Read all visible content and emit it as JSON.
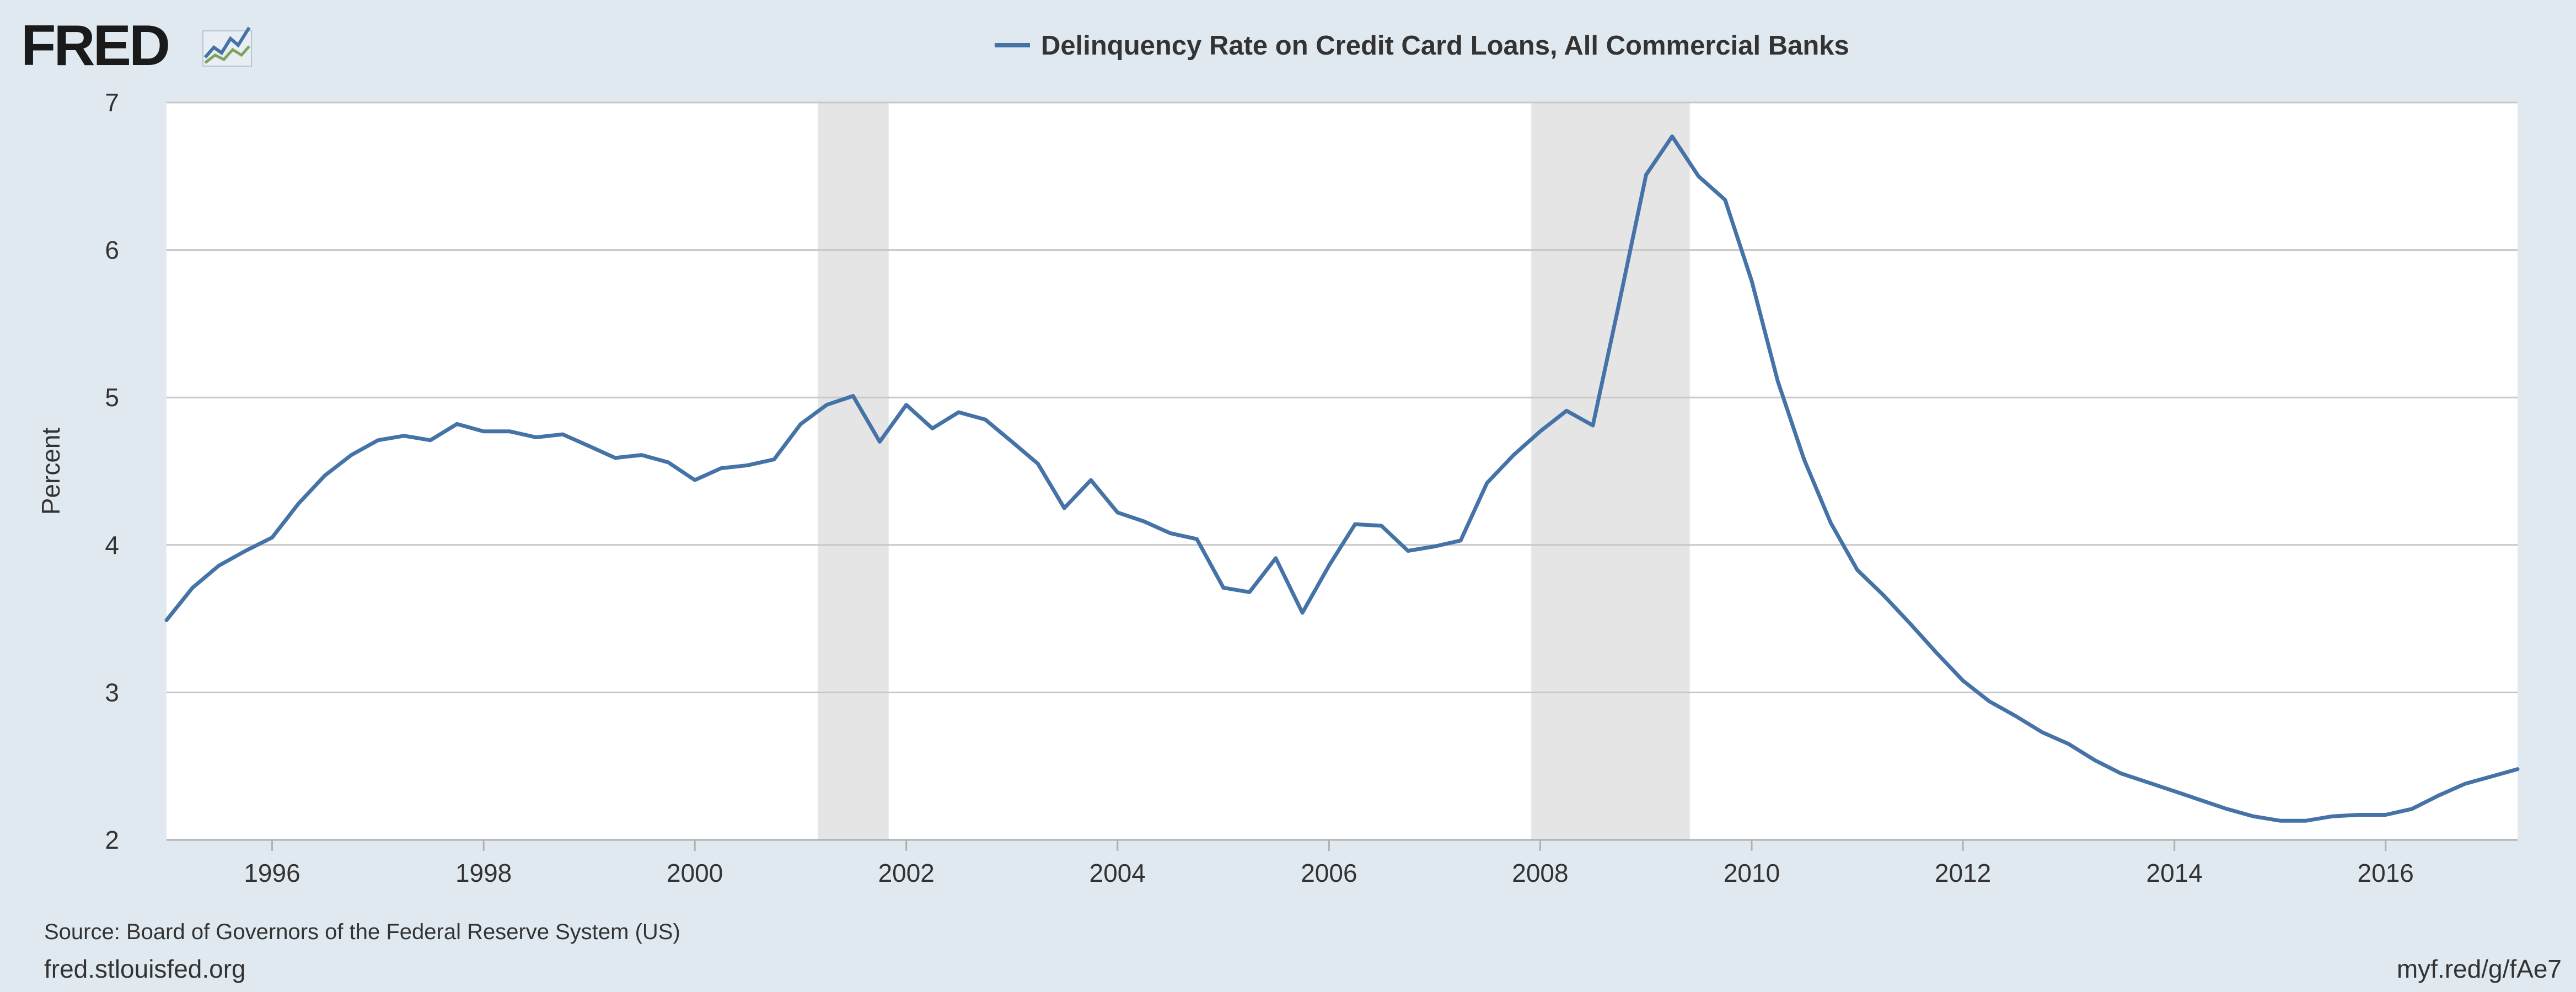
{
  "header": {
    "logo_text": "FRED",
    "logo_icon": "line-chart-icon"
  },
  "footer": {
    "source": "Source: Board of Governors of the Federal Reserve System (US)",
    "site": "fred.stlouisfed.org",
    "short_link": "myf.red/g/fAe7"
  },
  "colors": {
    "background": "#e1e9f0",
    "plot_background": "#ffffff",
    "series": "#4572a7",
    "recession": "#e5e5e5",
    "grid": "#c8c8c8"
  },
  "chart_data": {
    "type": "line",
    "title": "",
    "xlabel": "",
    "ylabel": "Percent",
    "xlim": [
      "1995-01-01",
      "2017-04-01"
    ],
    "ylim": [
      2,
      7
    ],
    "yticks": [
      2,
      3,
      4,
      5,
      6,
      7
    ],
    "xticks": [
      {
        "date": "1996-01-01",
        "label": "1996"
      },
      {
        "date": "1998-01-01",
        "label": "1998"
      },
      {
        "date": "2000-01-01",
        "label": "2000"
      },
      {
        "date": "2002-01-01",
        "label": "2002"
      },
      {
        "date": "2004-01-01",
        "label": "2004"
      },
      {
        "date": "2006-01-01",
        "label": "2006"
      },
      {
        "date": "2008-01-01",
        "label": "2008"
      },
      {
        "date": "2010-01-01",
        "label": "2010"
      },
      {
        "date": "2012-01-01",
        "label": "2012"
      },
      {
        "date": "2014-01-01",
        "label": "2014"
      },
      {
        "date": "2016-01-01",
        "label": "2016"
      }
    ],
    "grid": true,
    "legend_position": "top-center",
    "recessions": [
      {
        "start": "2001-03-01",
        "end": "2001-11-01"
      },
      {
        "start": "2007-12-01",
        "end": "2009-06-01"
      }
    ],
    "series": [
      {
        "name": "Delinquency Rate on Credit Card Loans, All Commercial Banks",
        "color": "#4572a7",
        "points": [
          [
            "1995-01-01",
            3.49
          ],
          [
            "1995-04-01",
            3.71
          ],
          [
            "1995-07-01",
            3.86
          ],
          [
            "1995-10-01",
            3.96
          ],
          [
            "1996-01-01",
            4.05
          ],
          [
            "1996-04-01",
            4.28
          ],
          [
            "1996-07-01",
            4.47
          ],
          [
            "1996-10-01",
            4.61
          ],
          [
            "1997-01-01",
            4.71
          ],
          [
            "1997-04-01",
            4.74
          ],
          [
            "1997-07-01",
            4.71
          ],
          [
            "1997-10-01",
            4.82
          ],
          [
            "1998-01-01",
            4.77
          ],
          [
            "1998-04-01",
            4.77
          ],
          [
            "1998-07-01",
            4.73
          ],
          [
            "1998-10-01",
            4.75
          ],
          [
            "1999-01-01",
            4.67
          ],
          [
            "1999-04-01",
            4.59
          ],
          [
            "1999-07-01",
            4.61
          ],
          [
            "1999-10-01",
            4.56
          ],
          [
            "2000-01-01",
            4.44
          ],
          [
            "2000-04-01",
            4.52
          ],
          [
            "2000-07-01",
            4.54
          ],
          [
            "2000-10-01",
            4.58
          ],
          [
            "2001-01-01",
            4.82
          ],
          [
            "2001-04-01",
            4.95
          ],
          [
            "2001-07-01",
            5.01
          ],
          [
            "2001-10-01",
            4.7
          ],
          [
            "2002-01-01",
            4.95
          ],
          [
            "2002-04-01",
            4.79
          ],
          [
            "2002-07-01",
            4.9
          ],
          [
            "2002-10-01",
            4.85
          ],
          [
            "2003-01-01",
            4.7
          ],
          [
            "2003-04-01",
            4.55
          ],
          [
            "2003-07-01",
            4.25
          ],
          [
            "2003-10-01",
            4.44
          ],
          [
            "2004-01-01",
            4.22
          ],
          [
            "2004-04-01",
            4.16
          ],
          [
            "2004-07-01",
            4.08
          ],
          [
            "2004-10-01",
            4.04
          ],
          [
            "2005-01-01",
            3.71
          ],
          [
            "2005-04-01",
            3.68
          ],
          [
            "2005-07-01",
            3.91
          ],
          [
            "2005-10-01",
            3.54
          ],
          [
            "2006-01-01",
            3.86
          ],
          [
            "2006-04-01",
            4.14
          ],
          [
            "2006-07-01",
            4.13
          ],
          [
            "2006-10-01",
            3.96
          ],
          [
            "2007-01-01",
            3.99
          ],
          [
            "2007-04-01",
            4.03
          ],
          [
            "2007-07-01",
            4.42
          ],
          [
            "2007-10-01",
            4.61
          ],
          [
            "2008-01-01",
            4.77
          ],
          [
            "2008-04-01",
            4.91
          ],
          [
            "2008-07-01",
            4.81
          ],
          [
            "2008-10-01",
            5.65
          ],
          [
            "2009-01-01",
            6.51
          ],
          [
            "2009-04-01",
            6.77
          ],
          [
            "2009-07-01",
            6.5
          ],
          [
            "2009-10-01",
            6.34
          ],
          [
            "2010-01-01",
            5.79
          ],
          [
            "2010-04-01",
            5.11
          ],
          [
            "2010-07-01",
            4.58
          ],
          [
            "2010-10-01",
            4.15
          ],
          [
            "2011-01-01",
            3.83
          ],
          [
            "2011-04-01",
            3.66
          ],
          [
            "2011-07-01",
            3.47
          ],
          [
            "2011-10-01",
            3.27
          ],
          [
            "2012-01-01",
            3.08
          ],
          [
            "2012-04-01",
            2.94
          ],
          [
            "2012-07-01",
            2.84
          ],
          [
            "2012-10-01",
            2.73
          ],
          [
            "2013-01-01",
            2.65
          ],
          [
            "2013-04-01",
            2.54
          ],
          [
            "2013-07-01",
            2.45
          ],
          [
            "2013-10-01",
            2.39
          ],
          [
            "2014-01-01",
            2.33
          ],
          [
            "2014-04-01",
            2.27
          ],
          [
            "2014-07-01",
            2.21
          ],
          [
            "2014-10-01",
            2.16
          ],
          [
            "2015-01-01",
            2.13
          ],
          [
            "2015-04-01",
            2.13
          ],
          [
            "2015-07-01",
            2.16
          ],
          [
            "2015-10-01",
            2.17
          ],
          [
            "2016-01-01",
            2.17
          ],
          [
            "2016-04-01",
            2.21
          ],
          [
            "2016-07-01",
            2.3
          ],
          [
            "2016-10-01",
            2.38
          ],
          [
            "2017-01-01",
            2.43
          ],
          [
            "2017-04-01",
            2.48
          ]
        ]
      }
    ]
  }
}
